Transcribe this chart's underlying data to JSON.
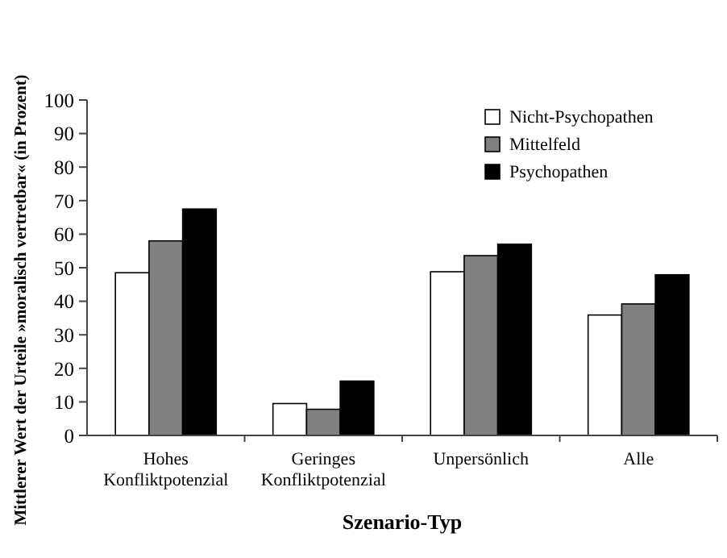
{
  "chart_data": {
    "type": "bar",
    "xlabel": "Szenario-Typ",
    "ylabel": "Mittlerer Wert der Urteile »moralisch vertretbar« (in Prozent)",
    "categories": [
      "Hohes\nKonfliktpotenzial",
      "Geringes\nKonfliktpotenzial",
      "Unpersönlich",
      "Alle"
    ],
    "series": [
      {
        "name": "Nicht-Psychopathen",
        "color": "#ffffff",
        "values": [
          48.5,
          9.5,
          48.8,
          35.9
        ]
      },
      {
        "name": "Mittelfeld",
        "color": "#808080",
        "values": [
          58,
          7.8,
          53.6,
          39.2
        ]
      },
      {
        "name": "Psychopathen",
        "color": "#000000",
        "values": [
          67.5,
          16.2,
          57,
          47.9
        ]
      }
    ],
    "ylim": [
      0,
      100
    ],
    "yticks": [
      0,
      10,
      20,
      30,
      40,
      50,
      60,
      70,
      80,
      90,
      100
    ],
    "grid": false,
    "legend": "top right"
  }
}
